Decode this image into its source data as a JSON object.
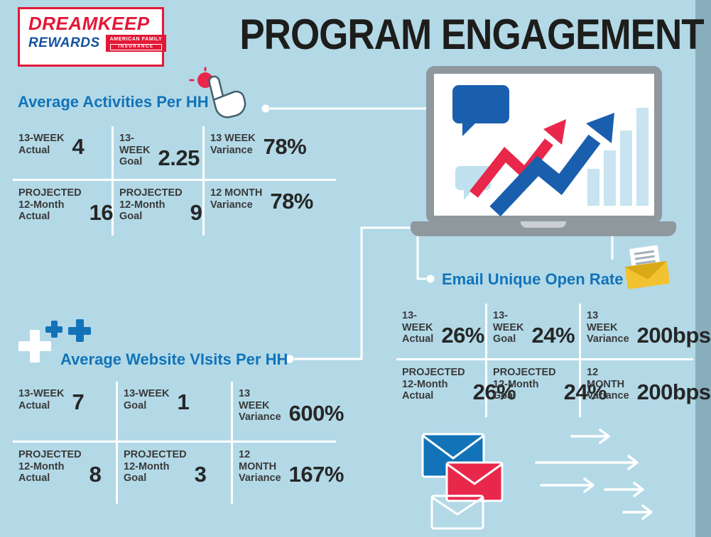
{
  "page": {
    "title": "PROGRAM ENGAGEMENT",
    "background": "#b3d9e7"
  },
  "logo": {
    "line1": "DREAMKEEP",
    "line2": "REWARDS",
    "brand_line1": "AMERICAN FAMILY",
    "brand_line2": "INSURANCE"
  },
  "colors": {
    "bg": "#b3d9e7",
    "blue": "#1273b8",
    "navy": "#1450a0",
    "logored": "#e31837",
    "red": "#e8274b",
    "dark": "#262626",
    "label": "#3a3a3a",
    "ink": "#1d1d1b",
    "gray": "#8f989d",
    "graylight": "#c9cfd3",
    "darkblue": "#1a5fae",
    "lightblue": "#bfe0ee",
    "paleblue": "#c7e4f0",
    "gold": "#f2c230",
    "golddark": "#d9a916"
  },
  "sections": {
    "activities": {
      "title": "Average Activities Per HH",
      "cells": [
        {
          "labels": [
            "13-WEEK",
            "Actual"
          ],
          "value": "4"
        },
        {
          "labels": [
            "13-WEEK",
            "Goal"
          ],
          "value": "2.25"
        },
        {
          "labels": [
            "13 WEEK",
            "Variance"
          ],
          "value": "78%"
        },
        {
          "labels": [
            "PROJECTED",
            "12-Month",
            "Actual"
          ],
          "value": "16"
        },
        {
          "labels": [
            "PROJECTED",
            "12-Month",
            "Goal"
          ],
          "value": "9"
        },
        {
          "labels": [
            "12 MONTH",
            "Variance"
          ],
          "value": "78%"
        }
      ]
    },
    "email": {
      "title": "Email Unique Open Rate",
      "cells": [
        {
          "labels": [
            "13-WEEK",
            "Actual"
          ],
          "value": "26%"
        },
        {
          "labels": [
            "13-WEEK",
            "Goal"
          ],
          "value": "24%"
        },
        {
          "labels": [
            "13 WEEK",
            "Variance"
          ],
          "value": "200bps"
        },
        {
          "labels": [
            "PROJECTED",
            "12-Month",
            "Actual"
          ],
          "value": "26%"
        },
        {
          "labels": [
            "PROJECTED",
            "12-Month",
            "Goal"
          ],
          "value": "24%"
        },
        {
          "labels": [
            "12 MONTH",
            "Variance"
          ],
          "value": "200bps"
        }
      ]
    },
    "website": {
      "title": "Average Website VIsits Per HH",
      "cells": [
        {
          "labels": [
            "13-WEEK",
            "Actual"
          ],
          "value": "7"
        },
        {
          "labels": [
            "13-WEEK",
            "Goal"
          ],
          "value": "1"
        },
        {
          "labels": [
            "13 WEEK",
            "Variance"
          ],
          "value": "600%"
        },
        {
          "labels": [
            "PROJECTED",
            "12-Month",
            "Actual"
          ],
          "value": "8"
        },
        {
          "labels": [
            "PROJECTED",
            "12-Month",
            "Goal"
          ],
          "value": "3"
        },
        {
          "labels": [
            "12 MONTH",
            "Variance"
          ],
          "value": "167%"
        }
      ]
    }
  }
}
